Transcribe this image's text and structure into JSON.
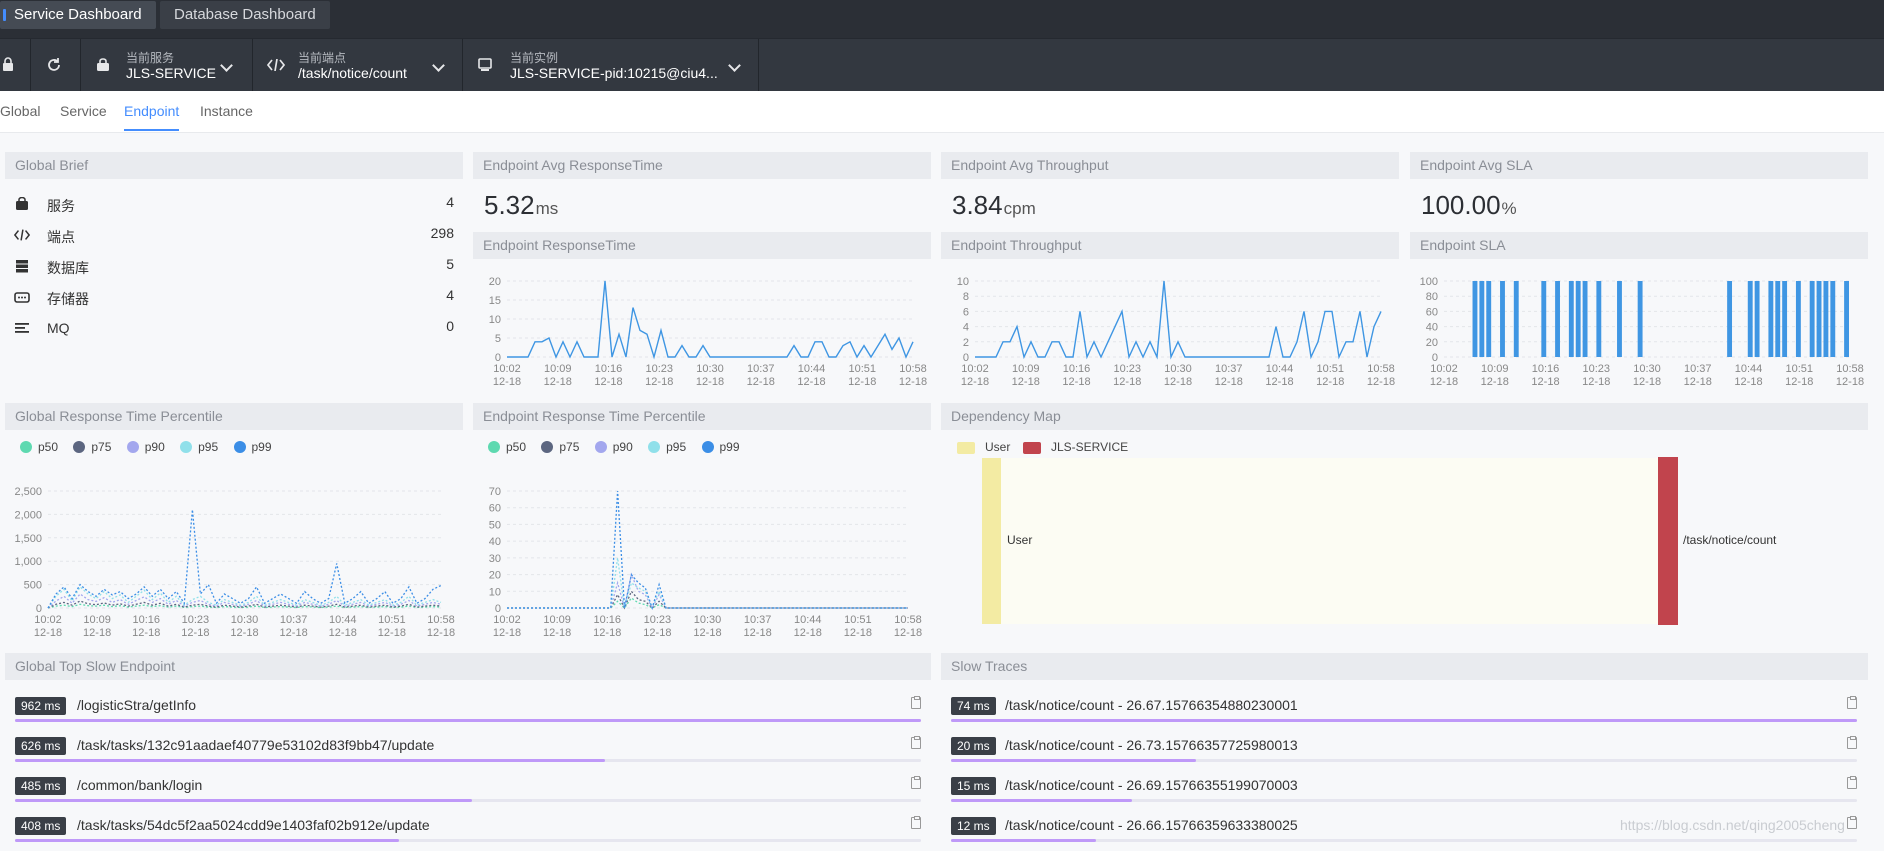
{
  "dashboard_tabs": [
    "Service Dashboard",
    "Database Dashboard"
  ],
  "selectors": {
    "service": {
      "label": "当前服务",
      "value": "JLS-SERVICE"
    },
    "endpoint": {
      "label": "当前端点",
      "value": "/task/notice/count"
    },
    "instance": {
      "label": "当前实例",
      "value": "JLS-SERVICE-pid:10215@ciu4..."
    }
  },
  "nav_tabs": [
    "Global",
    "Service",
    "Endpoint",
    "Instance"
  ],
  "nav_active": "Endpoint",
  "global_brief": {
    "title": "Global Brief",
    "rows": [
      {
        "icon": "service-icon",
        "label": "服务",
        "value": "4"
      },
      {
        "icon": "endpoint-icon",
        "label": "端点",
        "value": "298"
      },
      {
        "icon": "database-icon",
        "label": "数据库",
        "value": "5"
      },
      {
        "icon": "storage-icon",
        "label": "存储器",
        "value": "4"
      },
      {
        "icon": "mq-icon",
        "label": "MQ",
        "value": "0"
      }
    ]
  },
  "avg_response": {
    "title": "Endpoint Avg ResponseTime",
    "value": "5.32",
    "unit": "ms"
  },
  "avg_throughput": {
    "title": "Endpoint Avg Throughput",
    "value": "3.84",
    "unit": "cpm"
  },
  "avg_sla": {
    "title": "Endpoint Avg SLA",
    "value": "100.00",
    "unit": "%"
  },
  "panel_titles": {
    "response_time": "Endpoint ResponseTime",
    "throughput": "Endpoint Throughput",
    "sla": "Endpoint SLA",
    "global_percentile": "Global Response Time Percentile",
    "endpoint_percentile": "Endpoint Response Time Percentile",
    "dependency": "Dependency Map",
    "top_slow": "Global Top Slow Endpoint",
    "slow_traces": "Slow Traces"
  },
  "percentile_legend": [
    "p50",
    "p75",
    "p90",
    "p95",
    "p99"
  ],
  "colors": {
    "accent": "#448dfe",
    "line": "#3f96e3",
    "p50": "#5ed9b0",
    "p75": "#5c6680",
    "p90": "#a3a7ee",
    "p95": "#90e0ea",
    "p99": "#3b8ee6",
    "user_node": "#f3eba3",
    "service_node": "#c1444d",
    "slow_bar": "#bf99f8"
  },
  "chart_data": [
    {
      "type": "line",
      "name": "endpoint-responsetime",
      "ylim": [
        0,
        20
      ],
      "yticks": [
        "20",
        "15",
        "10",
        "5",
        "0"
      ],
      "xticks": [
        "10:02\n12-18",
        "10:09\n12-18",
        "10:16\n12-18",
        "10:23\n12-18",
        "10:30\n12-18",
        "10:37\n12-18",
        "10:44\n12-18",
        "10:51\n12-18",
        "10:58\n12-18"
      ],
      "values": [
        0,
        0,
        0,
        0,
        4,
        4,
        5,
        0,
        4,
        0,
        4,
        0,
        0,
        0,
        20,
        0,
        6,
        0,
        13,
        7,
        6,
        0,
        7,
        0,
        0,
        3,
        0,
        0,
        3,
        0,
        0,
        0,
        0,
        0,
        0,
        0,
        0,
        0,
        0,
        0,
        0,
        3,
        0,
        0,
        4,
        4,
        0,
        0,
        3,
        4,
        0,
        3,
        0,
        3,
        6,
        2,
        5,
        0,
        4
      ]
    },
    {
      "type": "line",
      "name": "endpoint-throughput",
      "ylim": [
        0,
        10
      ],
      "yticks": [
        "10",
        "8",
        "6",
        "4",
        "2",
        "0"
      ],
      "xticks": [
        "10:02\n12-18",
        "10:09\n12-18",
        "10:16\n12-18",
        "10:23\n12-18",
        "10:30\n12-18",
        "10:37\n12-18",
        "10:44\n12-18",
        "10:51\n12-18",
        "10:58\n12-18"
      ],
      "values": [
        0,
        0,
        0,
        0,
        2,
        2,
        4,
        0,
        2,
        0,
        0,
        2,
        2,
        0,
        0,
        6,
        0,
        2,
        0,
        2,
        4,
        6,
        0,
        2,
        0,
        2,
        0,
        10,
        0,
        2,
        0,
        0,
        0,
        0,
        0,
        0,
        0,
        0,
        0,
        0,
        0,
        0,
        0,
        4,
        0,
        0,
        2,
        6,
        0,
        2,
        6,
        6,
        0,
        2,
        2,
        6,
        0,
        4,
        6
      ]
    },
    {
      "type": "bar",
      "name": "endpoint-sla",
      "ylim": [
        0,
        100
      ],
      "yticks": [
        "100",
        "80",
        "60",
        "40",
        "20",
        "0"
      ],
      "xticks": [
        "10:02\n12-18",
        "10:09\n12-18",
        "10:16\n12-18",
        "10:23\n12-18",
        "10:30\n12-18",
        "10:37\n12-18",
        "10:44\n12-18",
        "10:51\n12-18",
        "10:58\n12-18"
      ],
      "values": [
        0,
        0,
        0,
        0,
        100,
        100,
        100,
        0,
        100,
        0,
        100,
        0,
        0,
        0,
        100,
        0,
        100,
        0,
        100,
        100,
        100,
        0,
        100,
        0,
        0,
        100,
        0,
        0,
        100,
        0,
        0,
        0,
        0,
        0,
        0,
        0,
        0,
        0,
        0,
        0,
        0,
        100,
        0,
        0,
        100,
        100,
        0,
        100,
        100,
        100,
        0,
        100,
        0,
        100,
        100,
        100,
        100,
        0,
        100
      ]
    },
    {
      "type": "line",
      "name": "global-response-percentile",
      "ylim": [
        0,
        2500
      ],
      "yticks": [
        "2,500",
        "2,000",
        "1,500",
        "1,000",
        "500",
        "0"
      ],
      "xticks": [
        "10:02\n12-18",
        "10:09\n12-18",
        "10:16\n12-18",
        "10:23\n12-18",
        "10:30\n12-18",
        "10:37\n12-18",
        "10:44\n12-18",
        "10:51\n12-18",
        "10:58\n12-18"
      ],
      "series": [
        {
          "name": "p50",
          "values": [
            0,
            40,
            60,
            30,
            80,
            50,
            40,
            60,
            30,
            50,
            20,
            40,
            60,
            30,
            50,
            20,
            40,
            10,
            30,
            40,
            20,
            10,
            30,
            20,
            10,
            20,
            40,
            10,
            20,
            30,
            20,
            10,
            30,
            20,
            10,
            20,
            40,
            10,
            20,
            30,
            10,
            20,
            30,
            10,
            20,
            40,
            10,
            20,
            30,
            20
          ]
        },
        {
          "name": "p75",
          "values": [
            0,
            80,
            120,
            60,
            150,
            90,
            70,
            110,
            60,
            90,
            40,
            80,
            120,
            60,
            100,
            40,
            80,
            20,
            60,
            80,
            40,
            20,
            60,
            40,
            20,
            40,
            80,
            20,
            40,
            60,
            40,
            20,
            60,
            40,
            20,
            40,
            80,
            20,
            40,
            60,
            20,
            40,
            60,
            20,
            40,
            80,
            20,
            40,
            60,
            40
          ]
        },
        {
          "name": "p90",
          "values": [
            0,
            150,
            250,
            100,
            300,
            180,
            140,
            220,
            120,
            180,
            80,
            160,
            240,
            120,
            200,
            80,
            160,
            40,
            120,
            160,
            80,
            40,
            120,
            80,
            40,
            80,
            160,
            40,
            80,
            120,
            80,
            40,
            120,
            80,
            40,
            80,
            160,
            40,
            80,
            120,
            40,
            80,
            120,
            40,
            80,
            160,
            40,
            80,
            120,
            80
          ]
        },
        {
          "name": "p95",
          "values": [
            0,
            250,
            400,
            150,
            450,
            300,
            200,
            350,
            200,
            280,
            120,
            250,
            380,
            180,
            320,
            120,
            250,
            60,
            180,
            250,
            120,
            60,
            180,
            120,
            60,
            120,
            250,
            60,
            120,
            180,
            120,
            60,
            180,
            120,
            60,
            120,
            250,
            60,
            120,
            180,
            60,
            120,
            180,
            60,
            120,
            250,
            60,
            120,
            180,
            120
          ]
        },
        {
          "name": "p99",
          "values": [
            0,
            300,
            450,
            200,
            500,
            350,
            250,
            400,
            280,
            350,
            200,
            300,
            450,
            250,
            400,
            200,
            350,
            100,
            2100,
            300,
            500,
            100,
            300,
            200,
            100,
            200,
            450,
            100,
            200,
            300,
            200,
            100,
            350,
            200,
            100,
            200,
            950,
            100,
            200,
            350,
            100,
            200,
            350,
            100,
            200,
            450,
            100,
            200,
            400,
            480
          ]
        }
      ]
    },
    {
      "type": "line",
      "name": "endpoint-response-percentile",
      "ylim": [
        0,
        70
      ],
      "yticks": [
        "70",
        "60",
        "50",
        "40",
        "30",
        "20",
        "10",
        "0"
      ],
      "xticks": [
        "10:02\n12-18",
        "10:09\n12-18",
        "10:16\n12-18",
        "10:23\n12-18",
        "10:30\n12-18",
        "10:37\n12-18",
        "10:44\n12-18",
        "10:51\n12-18",
        "10:58\n12-18"
      ],
      "series": [
        {
          "name": "p50",
          "values": [
            0,
            0,
            0,
            0,
            0,
            0,
            0,
            0,
            0,
            0,
            0,
            0,
            0,
            0,
            0,
            0,
            4,
            0,
            6,
            3,
            2,
            0,
            2,
            0,
            0,
            0,
            0,
            0,
            0,
            0,
            0,
            0,
            0,
            0,
            0,
            0,
            0,
            0,
            0,
            0,
            0,
            0,
            0,
            0,
            0,
            0,
            0,
            0,
            0,
            0,
            0,
            0,
            0,
            0,
            0,
            0,
            0,
            0,
            0
          ]
        },
        {
          "name": "p75",
          "values": [
            0,
            0,
            0,
            0,
            0,
            0,
            0,
            0,
            0,
            0,
            0,
            0,
            0,
            0,
            0,
            0,
            8,
            0,
            10,
            5,
            4,
            0,
            4,
            0,
            0,
            0,
            0,
            0,
            0,
            0,
            0,
            0,
            0,
            0,
            0,
            0,
            0,
            0,
            0,
            0,
            0,
            0,
            0,
            0,
            0,
            0,
            0,
            0,
            0,
            0,
            0,
            0,
            0,
            0,
            0,
            0,
            0,
            0,
            0
          ]
        },
        {
          "name": "p90",
          "values": [
            0,
            0,
            0,
            0,
            0,
            0,
            0,
            0,
            0,
            0,
            0,
            0,
            0,
            0,
            0,
            0,
            15,
            0,
            20,
            10,
            8,
            0,
            8,
            0,
            0,
            0,
            0,
            0,
            0,
            0,
            0,
            0,
            0,
            0,
            0,
            0,
            0,
            0,
            0,
            0,
            0,
            0,
            0,
            0,
            0,
            0,
            0,
            0,
            0,
            0,
            0,
            0,
            0,
            0,
            0,
            0,
            0,
            0,
            0
          ]
        },
        {
          "name": "p95",
          "values": [
            0,
            0,
            0,
            0,
            0,
            0,
            0,
            0,
            0,
            0,
            0,
            0,
            0,
            0,
            0,
            0,
            30,
            0,
            15,
            12,
            10,
            0,
            10,
            0,
            0,
            0,
            0,
            0,
            0,
            0,
            0,
            0,
            0,
            0,
            0,
            0,
            0,
            0,
            0,
            0,
            0,
            0,
            0,
            0,
            0,
            0,
            0,
            0,
            0,
            0,
            0,
            0,
            0,
            0,
            0,
            0,
            0,
            0,
            0
          ]
        },
        {
          "name": "p99",
          "values": [
            0,
            0,
            0,
            0,
            0,
            0,
            0,
            0,
            0,
            0,
            0,
            0,
            0,
            0,
            0,
            0,
            70,
            0,
            20,
            15,
            12,
            0,
            14,
            0,
            0,
            0,
            0,
            0,
            0,
            0,
            0,
            0,
            0,
            0,
            0,
            0,
            0,
            0,
            0,
            0,
            0,
            0,
            0,
            0,
            0,
            0,
            0,
            0,
            0,
            0,
            0,
            0,
            0,
            0,
            0,
            0,
            0,
            0,
            0
          ]
        }
      ]
    }
  ],
  "dependency_map": {
    "legend": [
      "User",
      "JLS-SERVICE"
    ],
    "source": "User",
    "target": "/task/notice/count"
  },
  "top_slow_endpoints": [
    {
      "ms": "962 ms",
      "name": "/logisticStra/getInfo",
      "ratio": 1.0
    },
    {
      "ms": "626 ms",
      "name": "/task/tasks/132c91aadaef40779e53102d83f9bb47/update",
      "ratio": 0.651
    },
    {
      "ms": "485 ms",
      "name": "/common/bank/login",
      "ratio": 0.504
    },
    {
      "ms": "408 ms",
      "name": "/task/tasks/54dc5f2aa5024cdd9e1403faf02b912e/update",
      "ratio": 0.424
    }
  ],
  "slow_traces": [
    {
      "ms": "74 ms",
      "name": "/task/notice/count - 26.67.15766354880230001",
      "ratio": 1.0
    },
    {
      "ms": "20 ms",
      "name": "/task/notice/count - 26.73.15766357725980013",
      "ratio": 0.27
    },
    {
      "ms": "15 ms",
      "name": "/task/notice/count - 26.69.15766355199070003",
      "ratio": 0.2
    },
    {
      "ms": "12 ms",
      "name": "/task/notice/count - 26.66.15766359633380025",
      "ratio": 0.16
    }
  ],
  "watermark": "https://blog.csdn.net/qing2005cheng"
}
